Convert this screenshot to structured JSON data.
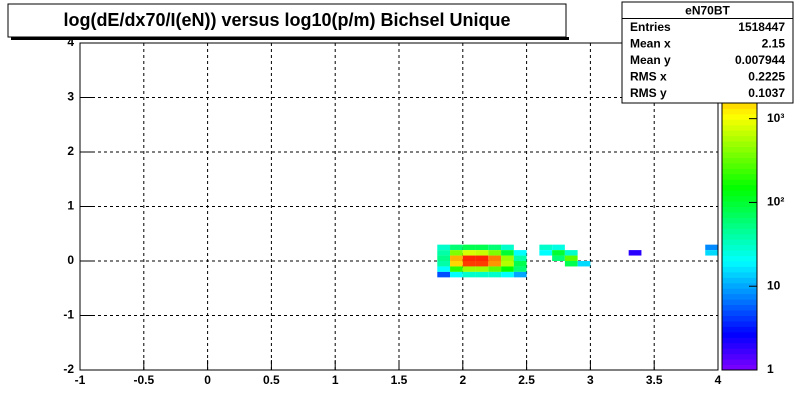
{
  "chart_data": {
    "type": "heatmap2d",
    "title": "log(dE/dx70/I(eN)) versus log10(p/m) Bichsel Unique",
    "xlim": [
      -1,
      4
    ],
    "ylim": [
      -2,
      4
    ],
    "xticks": [
      -1,
      -0.5,
      0,
      0.5,
      1,
      1.5,
      2,
      2.5,
      3,
      3.5,
      4
    ],
    "yticks": [
      -2,
      -1,
      0,
      1,
      2,
      3,
      4
    ],
    "grid": true,
    "zlog": true,
    "zlim": [
      1,
      8000
    ],
    "zticks": [
      1,
      10,
      {
        "value": 100,
        "label": "10²"
      },
      {
        "value": 1000,
        "label": "10³"
      }
    ],
    "x_bin_width": 0.1,
    "y_bin_width": 0.1,
    "cells": {
      "x": [
        1.8,
        1.9,
        2.0,
        2.1,
        2.2,
        2.3,
        1.8,
        1.9,
        2.0,
        2.1,
        2.2,
        2.3,
        2.4,
        1.8,
        1.9,
        2.0,
        2.1,
        2.2,
        2.3,
        2.4,
        1.8,
        1.9,
        2.0,
        2.1,
        2.2,
        2.3,
        2.4,
        1.8,
        1.9,
        2.0,
        2.1,
        2.2,
        2.3,
        2.4,
        1.8,
        1.9,
        2.0,
        2.1,
        2.2,
        2.3,
        2.4,
        2.6,
        2.7,
        2.6,
        2.7,
        2.8,
        2.7,
        2.8,
        2.8,
        2.9,
        3.3,
        3.9,
        3.9
      ],
      "y": [
        0.2,
        0.2,
        0.2,
        0.2,
        0.2,
        0.2,
        0.1,
        0.1,
        0.1,
        0.1,
        0.1,
        0.1,
        0.1,
        0.0,
        0.0,
        0.0,
        0.0,
        0.0,
        0.0,
        0.0,
        -0.1,
        -0.1,
        -0.1,
        -0.1,
        -0.1,
        -0.1,
        -0.1,
        -0.2,
        -0.2,
        -0.2,
        -0.2,
        -0.2,
        -0.2,
        -0.2,
        -0.3,
        -0.3,
        -0.3,
        -0.3,
        -0.3,
        -0.3,
        -0.3,
        0.2,
        0.2,
        0.1,
        0.1,
        0.1,
        0.0,
        0.0,
        -0.1,
        -0.1,
        0.1,
        0.2,
        0.1
      ],
      "values": [
        30,
        60,
        80,
        80,
        60,
        30,
        40,
        400,
        800,
        700,
        400,
        100,
        20,
        50,
        2000,
        6000,
        6000,
        3000,
        500,
        40,
        40,
        1500,
        5000,
        5000,
        2500,
        600,
        80,
        20,
        200,
        500,
        500,
        300,
        150,
        60,
        5,
        20,
        30,
        30,
        30,
        20,
        10,
        30,
        25,
        20,
        100,
        30,
        60,
        300,
        80,
        15,
        2,
        8,
        15
      ]
    },
    "stats": {
      "title": "eN70BT",
      "rows": [
        [
          "Entries",
          1518447
        ],
        [
          "Mean x",
          2.15
        ],
        [
          "Mean y",
          0.007944
        ],
        [
          "RMS x",
          0.2225
        ],
        [
          "RMS y",
          0.1037
        ]
      ]
    }
  }
}
